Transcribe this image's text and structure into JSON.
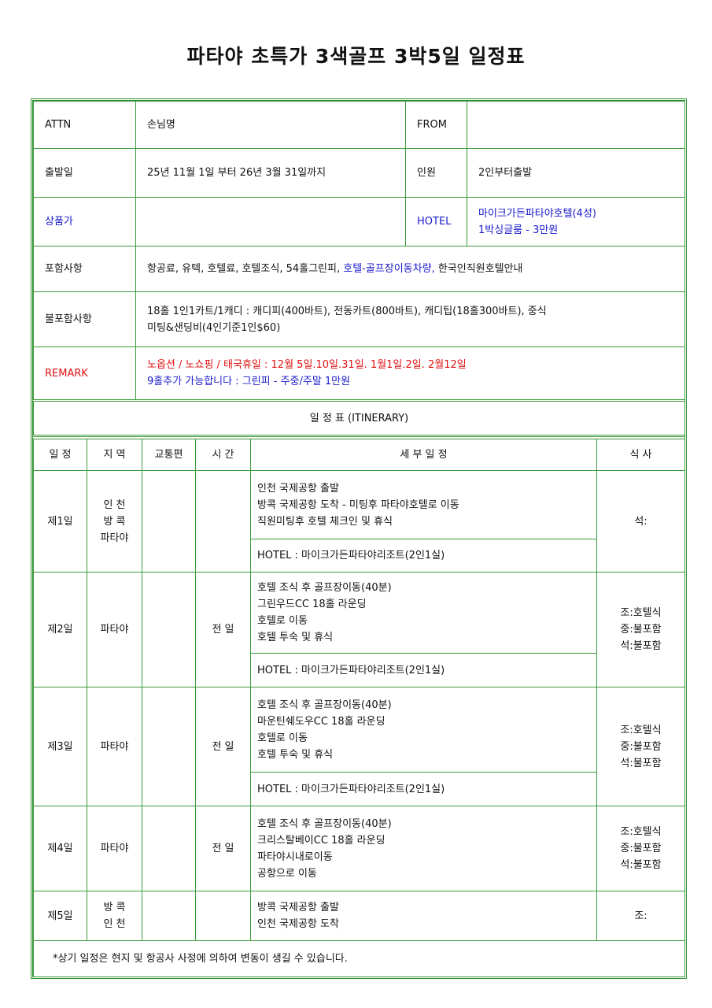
{
  "title": "파타야 초특가 3색골프 3박5일 일정표",
  "info": {
    "attn_label": "ATTN",
    "attn_value": "손님명",
    "from_label": "FROM",
    "from_value": "",
    "depart_label": "출발일",
    "depart_value": "25년 11월 1일 부터 26년 3월 31일까지",
    "people_label": "인원",
    "people_value": "2인부터출발",
    "price_label": "상품가",
    "price_value": "",
    "hotel_label": "HOTEL",
    "hotel_line1": "마이크가든파타야호텔(4성)",
    "hotel_line2": "1박싱글룸 - 3만원",
    "incl_label": "포함사항",
    "incl_part1": "항공료, 유텍, 호텔료, 호텔조식, 54홀그린피, ",
    "incl_part2": "호텔-골프장이동차량,",
    "incl_part3": " 한국인직원호텔안내",
    "excl_label": "불포함사항",
    "excl_line1": "18홀 1인1카트/1캐디 : 캐디피(400바트), 전동카트(800바트), 캐디팁(18홀300바트), 중식",
    "excl_line2": "미팅&샌딩비(4인기준1인$60)",
    "remark_label": "REMARK",
    "remark_line1": "노옵션 / 노쇼핑  / 태국휴일 : 12월 5일.10일.31일. 1월1일.2일. 2월12일",
    "remark_line2": "9홀추가 가능합니다 : 그린피 - 주중/주말 1만원"
  },
  "itinerary_title": "일 정 표 (ITINERARY)",
  "headers": [
    "일  정",
    "지  역",
    "교통편",
    "시  간",
    "세  부  일  정",
    "식  사"
  ],
  "days": [
    {
      "day": "제1일",
      "region": [
        "인  천",
        "방  콕",
        "파타야"
      ],
      "transport": "",
      "time": "",
      "details": [
        "인천 국제공항 출발",
        "방콕 국제공항 도착 - 미팅후 파타야호텔로 이동",
        "직원미팅후 호텔 체크인 및 휴식"
      ],
      "hotel": "HOTEL : 마이크가든파타야리조트(2인1실)",
      "meals": [
        "석:"
      ]
    },
    {
      "day": "제2일",
      "region": [
        "파타야"
      ],
      "transport": "",
      "time": "전 일",
      "details": [
        "호텔 조식 후 골프장이동(40분)",
        "그린우드CC 18홀 라운딩",
        "호텔로 이동",
        "호텔 투숙 및 휴식"
      ],
      "hotel": "HOTEL : 마이크가든파타야리조트(2인1실)",
      "meals": [
        "조:호텔식",
        "중:불포함",
        "석:불포함"
      ]
    },
    {
      "day": "제3일",
      "region": [
        "파타야"
      ],
      "transport": "",
      "time": "전 일",
      "details": [
        "호텔 조식 후 골프장이동(40분)",
        "마운틴쉐도우CC 18홀 라운딩",
        "호텔로 이동",
        "호텔 투숙 및 휴식"
      ],
      "hotel": "HOTEL : 마이크가든파타야리조트(2인1실)",
      "meals": [
        "조:호텔식",
        "중:불포함",
        "석:불포함"
      ]
    },
    {
      "day": "제4일",
      "region": [
        "파타야"
      ],
      "transport": "",
      "time": "전 일",
      "details": [
        "호텔 조식 후 골프장이동(40분)",
        "크리스탈베이CC 18홀 라운딩",
        "파타야시내로이동",
        "공항으로 이동"
      ],
      "meals": [
        "조:호텔식",
        "중:불포함",
        "석:불포함"
      ]
    },
    {
      "day": "제5일",
      "region": [
        "방  콕",
        "인  천"
      ],
      "transport": "",
      "time": "",
      "details": [
        "방콕 국제공항 출발",
        "인천 국제공항 도착"
      ],
      "meals": [
        "조:"
      ]
    }
  ],
  "footer": "*상기 일정은 현지 및 항공사 사정에 의하여 변동이 생길 수 있습니다.",
  "colors": {
    "border": "#3a9a3a",
    "blue": "#1a1acc",
    "red": "#e01010"
  }
}
